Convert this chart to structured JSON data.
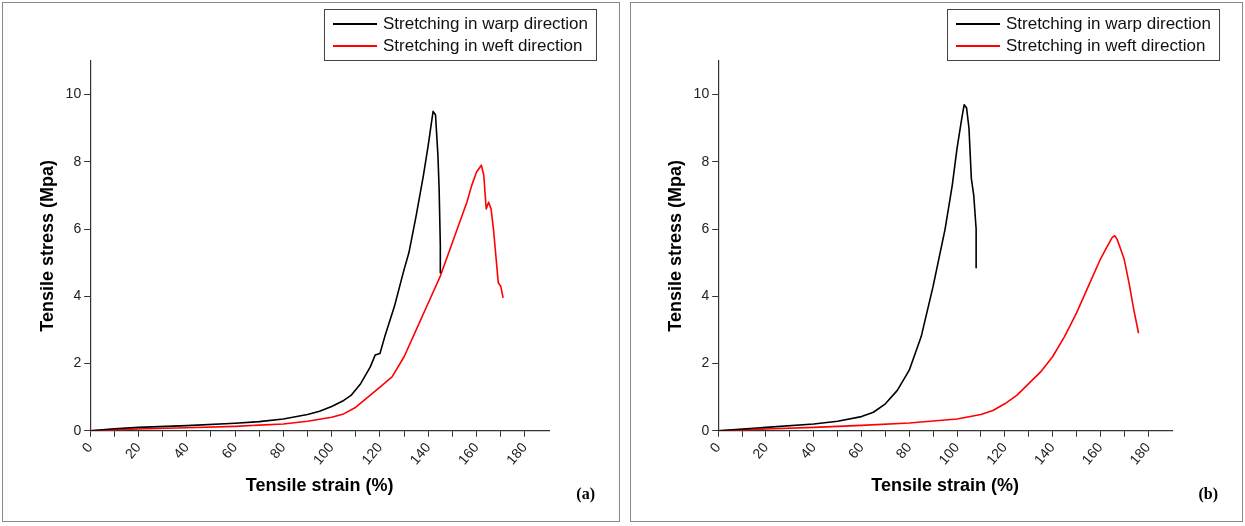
{
  "chart_data": [
    {
      "type": "line",
      "xlabel": "Tensile strain (%)",
      "ylabel": "Tensile stress (Mpa)",
      "annotations": [
        "(a)"
      ],
      "legend": "top right",
      "grid": false,
      "marker": "none",
      "line_style": "solid",
      "xlim": [
        0,
        190
      ],
      "xticks": [
        0,
        {
          "value": 10,
          "label": null
        },
        20,
        {
          "value": 30,
          "label": null
        },
        40,
        {
          "value": 50,
          "label": null
        },
        60,
        {
          "value": 70,
          "label": null
        },
        80,
        {
          "value": 90,
          "label": null
        },
        100,
        {
          "value": 110,
          "label": null
        },
        120,
        {
          "value": 130,
          "label": null
        },
        140,
        {
          "value": 150,
          "label": null
        },
        160,
        {
          "value": 170,
          "label": null
        },
        180
      ],
      "ylim": [
        0,
        11
      ],
      "yticks": [
        0,
        2,
        4,
        6,
        8,
        10
      ],
      "series": [
        {
          "name": "Stretching in warp direction",
          "color": "#000000",
          "x": [
            0,
            10,
            20,
            40,
            60,
            70,
            80,
            90,
            95,
            100,
            105,
            108,
            112,
            116,
            118,
            120,
            122,
            126,
            130,
            132,
            135,
            138,
            140,
            141,
            142,
            143,
            144,
            144.5,
            145,
            145
          ],
          "values": [
            0,
            0.06,
            0.1,
            0.15,
            0.22,
            0.27,
            0.35,
            0.48,
            0.58,
            0.72,
            0.9,
            1.05,
            1.4,
            1.9,
            2.25,
            2.3,
            2.8,
            3.7,
            4.8,
            5.3,
            6.4,
            7.6,
            8.5,
            9,
            9.5,
            9.4,
            8.2,
            7.2,
            5.5,
            4.7
          ]
        },
        {
          "name": "Stretching in weft direction",
          "color": "#ff0000",
          "x": [
            0,
            20,
            40,
            60,
            80,
            90,
            100,
            105,
            110,
            115,
            120,
            125,
            130,
            135,
            140,
            145,
            150,
            153,
            156,
            158,
            160,
            162,
            163,
            164,
            165,
            166,
            167,
            168,
            169,
            170,
            171
          ],
          "values": [
            0,
            0.05,
            0.09,
            0.13,
            0.2,
            0.28,
            0.4,
            0.5,
            0.7,
            1,
            1.3,
            1.6,
            2.2,
            3,
            3.8,
            4.6,
            5.6,
            6.2,
            6.8,
            7.3,
            7.7,
            7.9,
            7.6,
            6.6,
            6.8,
            6.6,
            6,
            5.2,
            4.4,
            4.3,
            3.95
          ]
        }
      ]
    },
    {
      "type": "line",
      "xlabel": "Tensile strain (%)",
      "ylabel": "Tensile stress (Mpa)",
      "annotations": [
        "(b)"
      ],
      "legend": "top right",
      "grid": false,
      "marker": "none",
      "line_style": "solid",
      "xlim": [
        0,
        190
      ],
      "xticks": [
        0,
        {
          "value": 10,
          "label": null
        },
        20,
        {
          "value": 30,
          "label": null
        },
        40,
        {
          "value": 50,
          "label": null
        },
        60,
        {
          "value": 70,
          "label": null
        },
        80,
        {
          "value": 90,
          "label": null
        },
        100,
        {
          "value": 110,
          "label": null
        },
        120,
        {
          "value": 130,
          "label": null
        },
        140,
        {
          "value": 150,
          "label": null
        },
        160,
        {
          "value": 170,
          "label": null
        },
        180
      ],
      "ylim": [
        0,
        11
      ],
      "yticks": [
        0,
        2,
        4,
        6,
        8,
        10
      ],
      "series": [
        {
          "name": "Stretching in warp direction",
          "color": "#000000",
          "x": [
            0,
            20,
            40,
            50,
            60,
            65,
            70,
            75,
            80,
            85,
            90,
            95,
            98,
            100,
            102,
            103,
            104,
            105,
            106,
            107,
            108,
            108
          ],
          "values": [
            0,
            0.1,
            0.2,
            0.28,
            0.42,
            0.55,
            0.8,
            1.2,
            1.8,
            2.8,
            4.3,
            6,
            7.3,
            8.4,
            9.3,
            9.7,
            9.6,
            9,
            7.5,
            7,
            6,
            4.85
          ]
        },
        {
          "name": "Stretching in weft direction",
          "color": "#ff0000",
          "x": [
            0,
            20,
            40,
            60,
            80,
            100,
            110,
            115,
            120,
            125,
            130,
            135,
            140,
            145,
            150,
            155,
            160,
            163,
            165,
            166,
            167,
            168,
            170,
            172,
            174,
            176
          ],
          "values": [
            0,
            0.05,
            0.1,
            0.16,
            0.23,
            0.35,
            0.48,
            0.6,
            0.8,
            1.05,
            1.4,
            1.75,
            2.2,
            2.8,
            3.5,
            4.3,
            5.1,
            5.5,
            5.75,
            5.8,
            5.7,
            5.5,
            5.1,
            4.4,
            3.6,
            2.9
          ]
        }
      ]
    }
  ]
}
